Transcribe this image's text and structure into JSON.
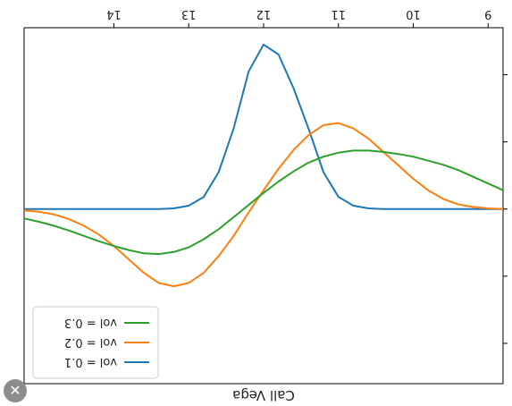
{
  "chart_data": {
    "type": "line",
    "title": "Call Vega",
    "rendering": "mirrored horizontally and vertically (rotated 180 degrees)",
    "x": [
      8.8,
      9.0,
      9.2,
      9.4,
      9.6,
      9.8,
      10.0,
      10.2,
      10.4,
      10.6,
      10.8,
      11.0,
      11.2,
      11.4,
      11.6,
      11.8,
      12.0,
      12.2,
      12.4,
      12.6,
      12.8,
      13.0,
      13.2,
      13.4,
      13.6,
      13.8,
      14.0,
      14.2,
      14.4,
      14.6,
      14.8,
      15.0,
      15.2
    ],
    "xlim": [
      8.8,
      15.2
    ],
    "ylim": [
      -2.7,
      2.6
    ],
    "x_ticks": [
      "9",
      "10",
      "11",
      "12",
      "13",
      "14"
    ],
    "x_tick_values": [
      9,
      10,
      11,
      12,
      13,
      14
    ],
    "y_ticks": [
      "-2",
      "-1",
      "0",
      "1",
      "2"
    ],
    "y_tick_values": [
      -2,
      -1,
      0,
      1,
      2
    ],
    "legend_position": "bottom-left",
    "series": [
      {
        "name": "vol = 0.1",
        "color": "#1f77b4",
        "values": [
          0.0,
          0.0,
          0.0,
          0.0,
          0.0,
          0.0,
          0.0,
          0.0,
          0.0,
          -0.01,
          -0.05,
          -0.18,
          -0.55,
          -1.2,
          -1.8,
          -2.3,
          -2.45,
          -2.05,
          -1.2,
          -0.55,
          -0.18,
          -0.05,
          -0.01,
          0.0,
          0.0,
          0.0,
          0.0,
          0.0,
          0.0,
          0.0,
          0.0,
          0.0,
          0.0
        ]
      },
      {
        "name": "vol = 0.2",
        "color": "#ff7f0e",
        "values": [
          0.0,
          -0.01,
          -0.03,
          -0.07,
          -0.15,
          -0.28,
          -0.45,
          -0.65,
          -0.85,
          -1.05,
          -1.2,
          -1.28,
          -1.25,
          -1.1,
          -0.88,
          -0.6,
          -0.28,
          0.05,
          0.4,
          0.7,
          0.95,
          1.1,
          1.15,
          1.1,
          0.95,
          0.75,
          0.55,
          0.38,
          0.25,
          0.15,
          0.08,
          0.04,
          0.02
        ]
      },
      {
        "name": "vol = 0.3",
        "color": "#2ca02c",
        "values": [
          -0.28,
          -0.38,
          -0.48,
          -0.58,
          -0.66,
          -0.72,
          -0.78,
          -0.82,
          -0.85,
          -0.87,
          -0.87,
          -0.84,
          -0.78,
          -0.69,
          -0.56,
          -0.41,
          -0.24,
          -0.06,
          0.12,
          0.3,
          0.45,
          0.57,
          0.64,
          0.67,
          0.66,
          0.61,
          0.55,
          0.48,
          0.4,
          0.32,
          0.25,
          0.19,
          0.14
        ]
      }
    ]
  },
  "ui": {
    "close_glyph": "✕"
  }
}
